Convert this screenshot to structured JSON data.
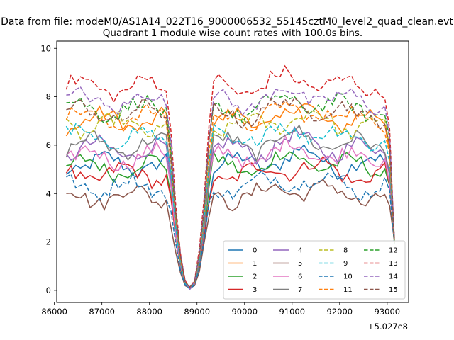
{
  "chart_data": {
    "type": "line",
    "suptitle": "Data from file: modeM0/AS1A14_022T16_9000006532_55145cztM0_level2_quad_clean.evt",
    "title": "Quadrant 1 module wise count rates with 100.0s bins.",
    "xlabel": "",
    "ylabel": "",
    "x_offset_label": "+5.027e8",
    "xlim": [
      86050,
      93450
    ],
    "ylim": [
      -0.5,
      10.3
    ],
    "x_ticks": [
      86000,
      87000,
      88000,
      89000,
      90000,
      91000,
      92000,
      93000
    ],
    "x_tick_labels": [
      "86000",
      "87000",
      "88000",
      "89000",
      "90000",
      "91000",
      "92000",
      "93000"
    ],
    "y_ticks": [
      0,
      2,
      4,
      6,
      8,
      10
    ],
    "y_tick_labels": [
      "0",
      "2",
      "4",
      "6",
      "8",
      "10"
    ],
    "grid": false,
    "legend_position": "lower right",
    "legend_columns": 4,
    "x": {
      "start": 86250,
      "step": 100,
      "count": 70
    },
    "series": [
      {
        "name": "0",
        "color": "#1f77b4",
        "dash": false,
        "level": 5.2
      },
      {
        "name": "1",
        "color": "#ff7f0e",
        "dash": false,
        "level": 7.0
      },
      {
        "name": "2",
        "color": "#2ca02c",
        "dash": false,
        "level": 5.1
      },
      {
        "name": "3",
        "color": "#d62728",
        "dash": false,
        "level": 4.8
      },
      {
        "name": "4",
        "color": "#9467bd",
        "dash": false,
        "level": 5.8
      },
      {
        "name": "5",
        "color": "#8c564b",
        "dash": false,
        "level": 3.9
      },
      {
        "name": "6",
        "color": "#e377c2",
        "dash": false,
        "level": 5.5
      },
      {
        "name": "7",
        "color": "#7f7f7f",
        "dash": false,
        "level": 6.0
      },
      {
        "name": "8",
        "color": "#bcbd22",
        "dash": true,
        "level": 6.8
      },
      {
        "name": "9",
        "color": "#17becf",
        "dash": true,
        "level": 6.3
      },
      {
        "name": "10",
        "color": "#1f77b4",
        "dash": true,
        "level": 4.3
      },
      {
        "name": "11",
        "color": "#ff7f0e",
        "dash": true,
        "level": 7.1
      },
      {
        "name": "12",
        "color": "#2ca02c",
        "dash": true,
        "level": 7.5
      },
      {
        "name": "13",
        "color": "#d62728",
        "dash": true,
        "level": 8.4
      },
      {
        "name": "14",
        "color": "#9467bd",
        "dash": true,
        "level": 7.8
      },
      {
        "name": "15",
        "color": "#8c564b",
        "dash": true,
        "level": 7.3
      }
    ]
  }
}
